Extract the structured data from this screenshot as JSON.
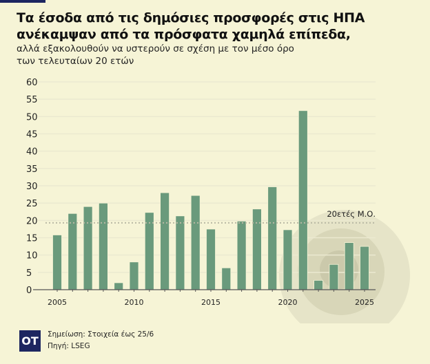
{
  "header": {
    "title_line1": "Τα έσοδα από τις δημόσιες προσφορές στις ΗΠΑ",
    "title_line2": "ανέκαμψαν από τα πρόσφατα χαμηλά επίπεδα,",
    "subtitle_line1": "αλλά εξακολουθούν να υστερούν σε σχέση με τον μέσο όρο",
    "subtitle_line2": "των τελευταίων 20 ετών"
  },
  "chart_data": {
    "type": "bar",
    "x": [
      2005,
      2006,
      2007,
      2008,
      2009,
      2010,
      2011,
      2012,
      2013,
      2014,
      2015,
      2016,
      2017,
      2018,
      2019,
      2020,
      2021,
      2022,
      2023,
      2024,
      2025
    ],
    "values": [
      15.8,
      22,
      24,
      25,
      2,
      8,
      22.3,
      28,
      21.3,
      27.2,
      17.5,
      6.3,
      19.8,
      23.3,
      29.7,
      17.3,
      51.7,
      2.7,
      7.3,
      13.6,
      12.5
    ],
    "ylim": [
      0,
      60
    ],
    "yticks": [
      0,
      5,
      10,
      15,
      20,
      25,
      30,
      35,
      40,
      45,
      50,
      55,
      60
    ],
    "xtick_labels": [
      "2005",
      "2010",
      "2015",
      "2020",
      "2025"
    ],
    "reference_line": {
      "value": 19.3,
      "label": "20ετές Μ.Ο."
    },
    "grid": true,
    "colors": {
      "bar": "#6a9a7c",
      "grid": "#ebe9d0",
      "avg": "#b9b8a4"
    }
  },
  "footer": {
    "logo": "OT",
    "note": "Σημείωση: Στοιχεία έως 25/6",
    "source": "Πηγή: LSEG"
  }
}
